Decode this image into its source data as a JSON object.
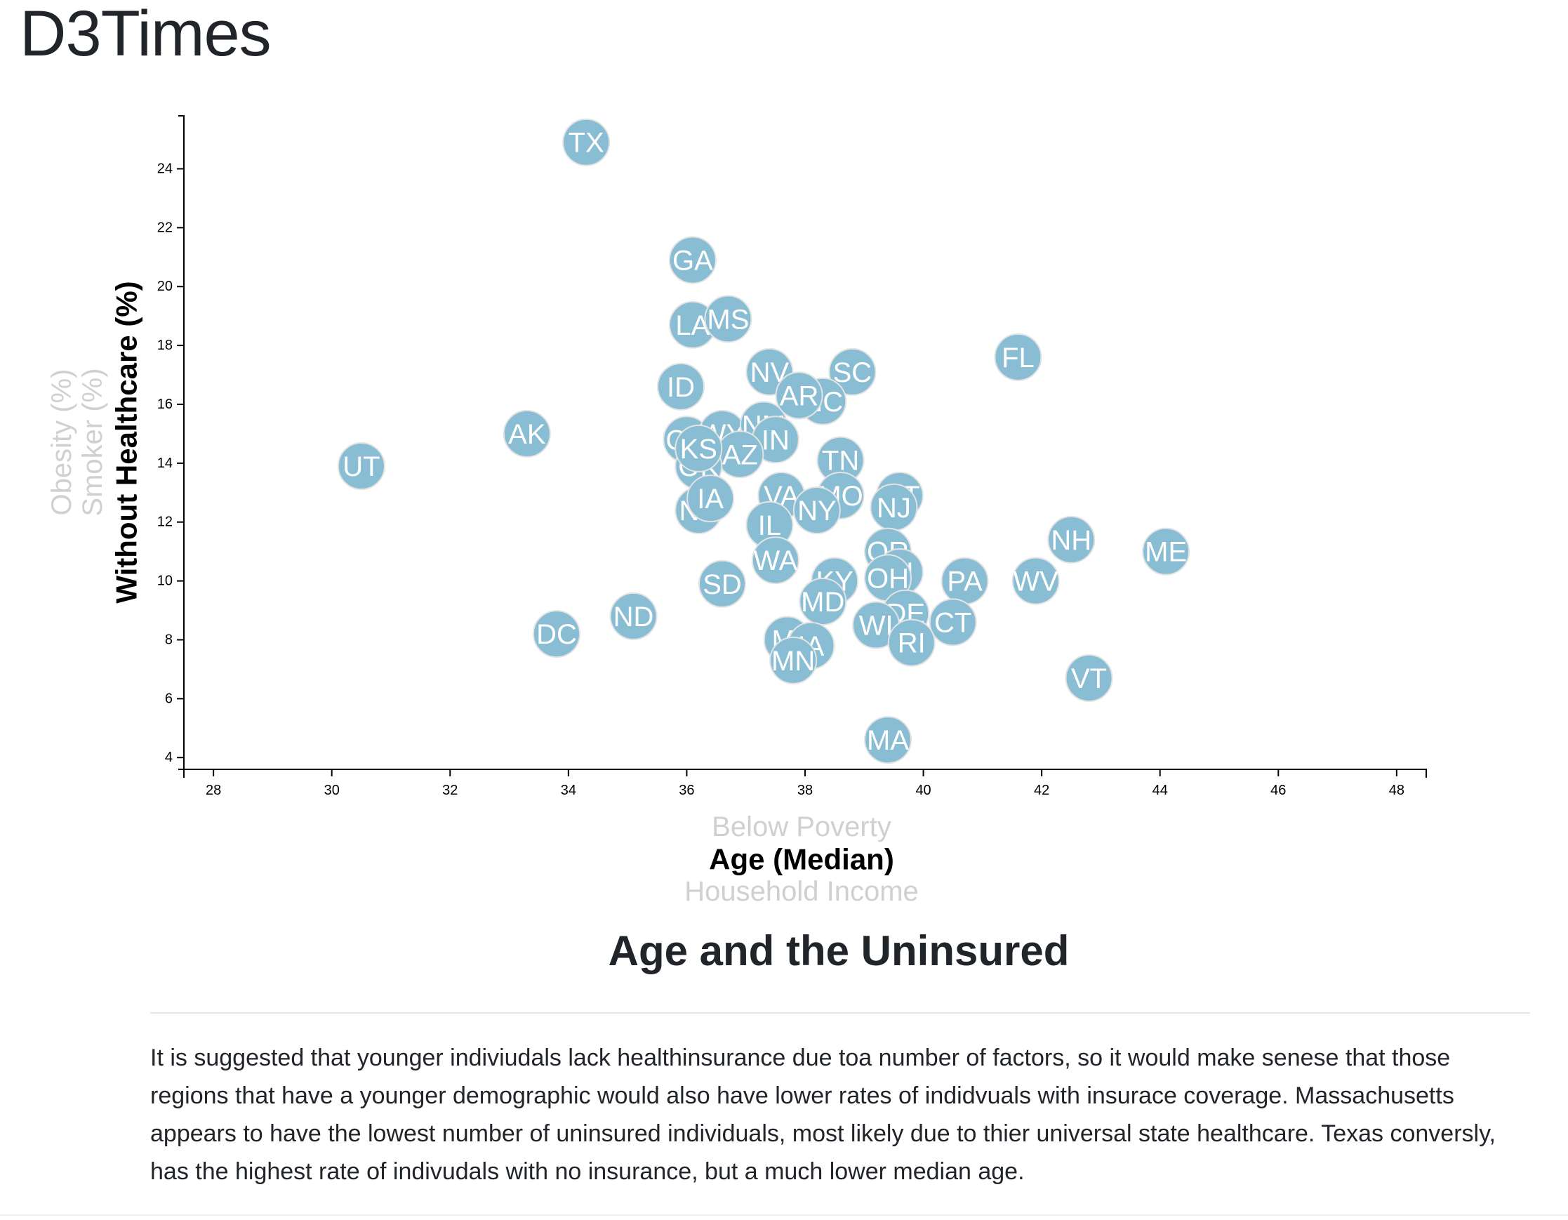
{
  "brand": "D3Times",
  "chart_data": {
    "type": "scatter",
    "x_axis": {
      "range": [
        27.5,
        48.5
      ],
      "ticks": [
        28,
        30,
        32,
        34,
        36,
        38,
        40,
        42,
        44,
        46,
        48
      ],
      "labels": [
        {
          "text": "Below Poverty",
          "active": false
        },
        {
          "text": "Age (Median)",
          "active": true
        },
        {
          "text": "Household Income",
          "active": false
        }
      ]
    },
    "y_axis": {
      "range": [
        3.6,
        25.8
      ],
      "ticks": [
        4,
        6,
        8,
        10,
        12,
        14,
        16,
        18,
        20,
        22,
        24
      ],
      "labels": [
        {
          "text": "Without Healthcare (%)",
          "active": true
        },
        {
          "text": "Smoker (%)",
          "active": false
        },
        {
          "text": "Obesity (%)",
          "active": false
        }
      ]
    },
    "grid": false,
    "marker_color": "#89bdd3",
    "points": [
      {
        "abbr": "TX",
        "x": 34.3,
        "y": 24.9
      },
      {
        "abbr": "GA",
        "x": 36.1,
        "y": 20.9
      },
      {
        "abbr": "LA",
        "x": 36.1,
        "y": 18.7
      },
      {
        "abbr": "MS",
        "x": 36.7,
        "y": 18.9
      },
      {
        "abbr": "FL",
        "x": 41.6,
        "y": 17.6
      },
      {
        "abbr": "NV",
        "x": 37.4,
        "y": 17.1
      },
      {
        "abbr": "SC",
        "x": 38.8,
        "y": 17.1
      },
      {
        "abbr": "AL",
        "x": 37.9,
        "y": 16.3
      },
      {
        "abbr": "NC",
        "x": 38.3,
        "y": 16.1
      },
      {
        "abbr": "ID",
        "x": 35.9,
        "y": 16.6
      },
      {
        "abbr": "AK",
        "x": 33.3,
        "y": 15.0
      },
      {
        "abbr": "UT",
        "x": 30.5,
        "y": 13.9
      },
      {
        "abbr": "CO",
        "x": 36.0,
        "y": 14.8
      },
      {
        "abbr": "WY",
        "x": 36.6,
        "y": 15.0
      },
      {
        "abbr": "NM",
        "x": 37.3,
        "y": 15.3
      },
      {
        "abbr": "IN",
        "x": 37.5,
        "y": 14.8
      },
      {
        "abbr": "AZ",
        "x": 36.9,
        "y": 14.3
      },
      {
        "abbr": "OK",
        "x": 36.2,
        "y": 13.9
      },
      {
        "abbr": "TN",
        "x": 38.6,
        "y": 14.1
      },
      {
        "abbr": "AR",
        "x": 37.9,
        "y": 16.3
      },
      {
        "abbr": "KS",
        "x": 36.2,
        "y": 14.5
      },
      {
        "abbr": "MO",
        "x": 38.6,
        "y": 12.9
      },
      {
        "abbr": "MT",
        "x": 39.6,
        "y": 12.9
      },
      {
        "abbr": "VA",
        "x": 37.6,
        "y": 12.9
      },
      {
        "abbr": "SD",
        "x": 36.6,
        "y": 9.9
      },
      {
        "abbr": "NE",
        "x": 36.2,
        "y": 12.4
      },
      {
        "abbr": "IA",
        "x": 36.4,
        "y": 12.8
      },
      {
        "abbr": "NJ",
        "x": 39.5,
        "y": 12.5
      },
      {
        "abbr": "NY",
        "x": 38.2,
        "y": 12.4
      },
      {
        "abbr": "IL",
        "x": 37.4,
        "y": 11.9
      },
      {
        "abbr": "NH",
        "x": 42.5,
        "y": 11.4
      },
      {
        "abbr": "ME",
        "x": 44.1,
        "y": 11.0
      },
      {
        "abbr": "WA",
        "x": 37.5,
        "y": 10.7
      },
      {
        "abbr": "OR",
        "x": 39.4,
        "y": 11.0
      },
      {
        "abbr": "HI",
        "x": 39.6,
        "y": 10.3
      },
      {
        "abbr": "OH",
        "x": 39.4,
        "y": 10.1
      },
      {
        "abbr": "KY",
        "x": 38.5,
        "y": 10.0
      },
      {
        "abbr": "PA",
        "x": 40.7,
        "y": 10.0
      },
      {
        "abbr": "WV",
        "x": 41.9,
        "y": 10.0
      },
      {
        "abbr": "MD",
        "x": 38.3,
        "y": 9.3
      },
      {
        "abbr": "ND",
        "x": 35.1,
        "y": 8.8
      },
      {
        "abbr": "DC",
        "x": 33.8,
        "y": 8.2
      },
      {
        "abbr": "DE",
        "x": 39.7,
        "y": 8.9
      },
      {
        "abbr": "CT",
        "x": 40.5,
        "y": 8.6
      },
      {
        "abbr": "WI",
        "x": 39.2,
        "y": 8.5
      },
      {
        "abbr": "RI",
        "x": 39.8,
        "y": 7.9
      },
      {
        "abbr": "MI",
        "x": 37.7,
        "y": 8.0
      },
      {
        "abbr": "IA",
        "x": 38.1,
        "y": 7.8
      },
      {
        "abbr": "MN",
        "x": 37.8,
        "y": 7.3
      },
      {
        "abbr": "VT",
        "x": 42.8,
        "y": 6.7
      },
      {
        "abbr": "MA",
        "x": 39.4,
        "y": 4.6
      }
    ]
  },
  "analysis": {
    "title": "Age and the Uninsured",
    "body": "It is suggested that younger indiviudals lack healthinsurance due toa number of factors, so it would make senese that those regions that have a younger demographic would also have lower rates of indidvuals with insurace coverage. Massachusetts appears to have the lowest number of uninsured individuals, most likely due to thier universal state healthcare. Texas conversly, has the highest rate of indivudals with no insurance, but a much lower median age."
  }
}
